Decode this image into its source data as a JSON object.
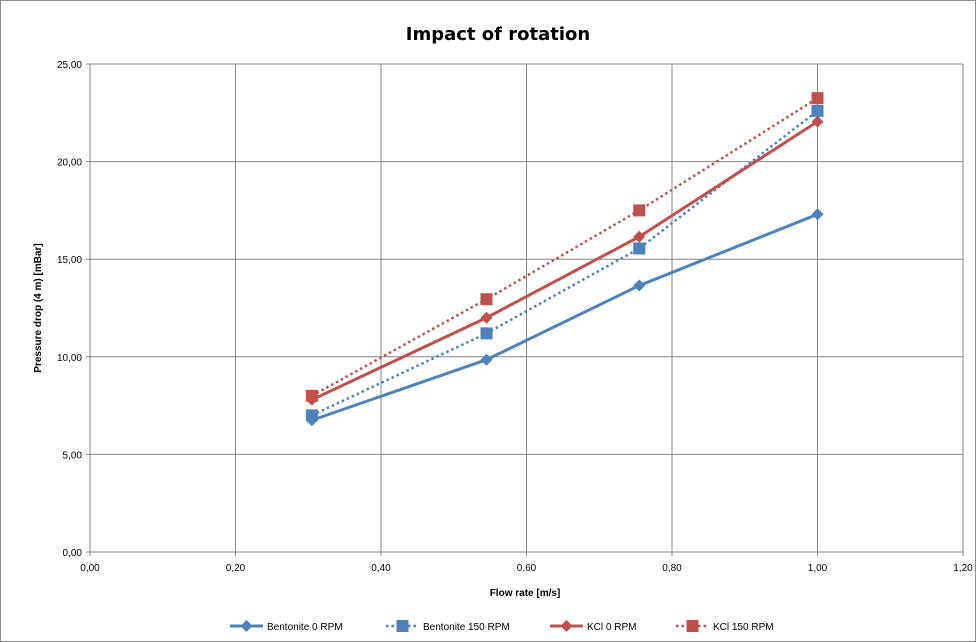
{
  "chart_data": {
    "type": "line",
    "title": "Impact of rotation",
    "xlabel": "Flow rate [m/s]",
    "ylabel": "Pressure drop (4 m) [mBar]",
    "xlim": [
      0,
      1.2
    ],
    "ylim": [
      0,
      25
    ],
    "x_ticks": [
      "0,00",
      "0,20",
      "0,40",
      "0,60",
      "0,80",
      "1,00",
      "1,20"
    ],
    "y_ticks": [
      "0,00",
      "5,00",
      "10,00",
      "15,00",
      "20,00",
      "25,00"
    ],
    "grid": true,
    "legend_position": "bottom",
    "series": [
      {
        "name": "Bentonite 0 RPM",
        "x": [
          0.305,
          0.545,
          0.755,
          1.0
        ],
        "values": [
          6.75,
          9.85,
          13.65,
          17.3
        ],
        "color": "#4f81bd",
        "marker": "diamond",
        "line_style": "solid"
      },
      {
        "name": "Bentonite 150 RPM",
        "x": [
          0.305,
          0.545,
          0.755,
          1.0
        ],
        "values": [
          7.0,
          11.2,
          15.55,
          22.6
        ],
        "color": "#4f81bd",
        "marker": "square",
        "line_style": "dotted"
      },
      {
        "name": "KCl 0 RPM",
        "x": [
          0.305,
          0.545,
          0.755,
          1.0
        ],
        "values": [
          7.8,
          12.0,
          16.15,
          22.05
        ],
        "color": "#c0504d",
        "marker": "diamond",
        "line_style": "solid"
      },
      {
        "name": "KCl 150 RPM",
        "x": [
          0.305,
          0.545,
          0.755,
          1.0
        ],
        "values": [
          8.0,
          12.95,
          17.5,
          23.25
        ],
        "color": "#c0504d",
        "marker": "square",
        "line_style": "dotted"
      }
    ]
  }
}
